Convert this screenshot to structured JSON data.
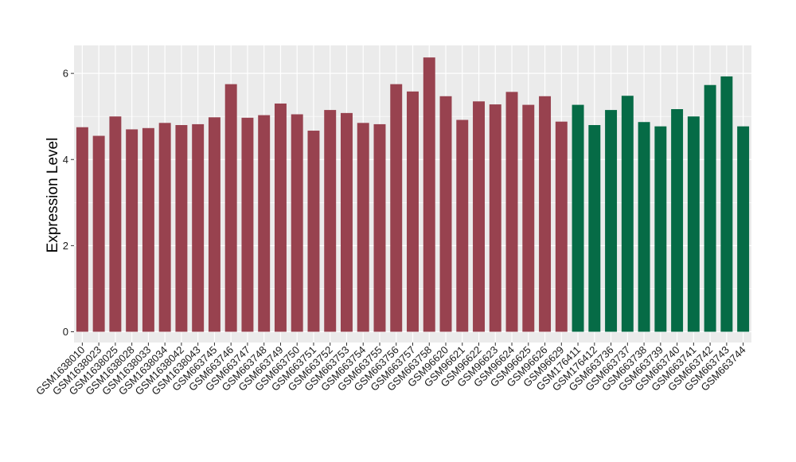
{
  "chart_data": {
    "type": "bar",
    "xlabel": "",
    "ylabel": "Expression Level",
    "ylim": [
      -0.25,
      6.65
    ],
    "yticks": [
      0,
      2,
      4,
      6
    ],
    "grid": true,
    "background": "#ebebeb",
    "gridline_color": "#ffffff",
    "categories": [
      "GSM1638010",
      "GSM1638023",
      "GSM1638025",
      "GSM1638028",
      "GSM1638033",
      "GSM1638034",
      "GSM1638042",
      "GSM1638043",
      "GSM663745",
      "GSM663746",
      "GSM663747",
      "GSM663748",
      "GSM663749",
      "GSM663750",
      "GSM663751",
      "GSM663752",
      "GSM663753",
      "GSM663754",
      "GSM663755",
      "GSM663756",
      "GSM663757",
      "GSM663758",
      "GSM96620",
      "GSM96621",
      "GSM96622",
      "GSM96623",
      "GSM96624",
      "GSM96625",
      "GSM96626",
      "GSM96629",
      "GSM176411",
      "GSM176412",
      "GSM663736",
      "GSM663737",
      "GSM663738",
      "GSM663739",
      "GSM663740",
      "GSM663741",
      "GSM663742",
      "GSM663743",
      "GSM663744"
    ],
    "values": [
      4.75,
      4.55,
      5.0,
      4.7,
      4.73,
      4.85,
      4.8,
      4.82,
      4.98,
      5.75,
      4.97,
      5.03,
      5.3,
      5.05,
      4.67,
      5.15,
      5.08,
      4.85,
      4.82,
      5.75,
      5.58,
      6.37,
      5.47,
      4.92,
      5.35,
      5.28,
      5.57,
      5.27,
      5.47,
      4.88,
      5.27,
      4.8,
      5.15,
      5.48,
      4.87,
      4.77,
      5.17,
      5.0,
      5.73,
      5.93,
      4.77
    ],
    "colors": [
      "#98424f",
      "#98424f",
      "#98424f",
      "#98424f",
      "#98424f",
      "#98424f",
      "#98424f",
      "#98424f",
      "#98424f",
      "#98424f",
      "#98424f",
      "#98424f",
      "#98424f",
      "#98424f",
      "#98424f",
      "#98424f",
      "#98424f",
      "#98424f",
      "#98424f",
      "#98424f",
      "#98424f",
      "#98424f",
      "#98424f",
      "#98424f",
      "#98424f",
      "#98424f",
      "#98424f",
      "#98424f",
      "#98424f",
      "#98424f",
      "#066b46",
      "#066b46",
      "#066b46",
      "#066b46",
      "#066b46",
      "#066b46",
      "#066b46",
      "#066b46",
      "#066b46",
      "#066b46",
      "#066b46"
    ]
  }
}
